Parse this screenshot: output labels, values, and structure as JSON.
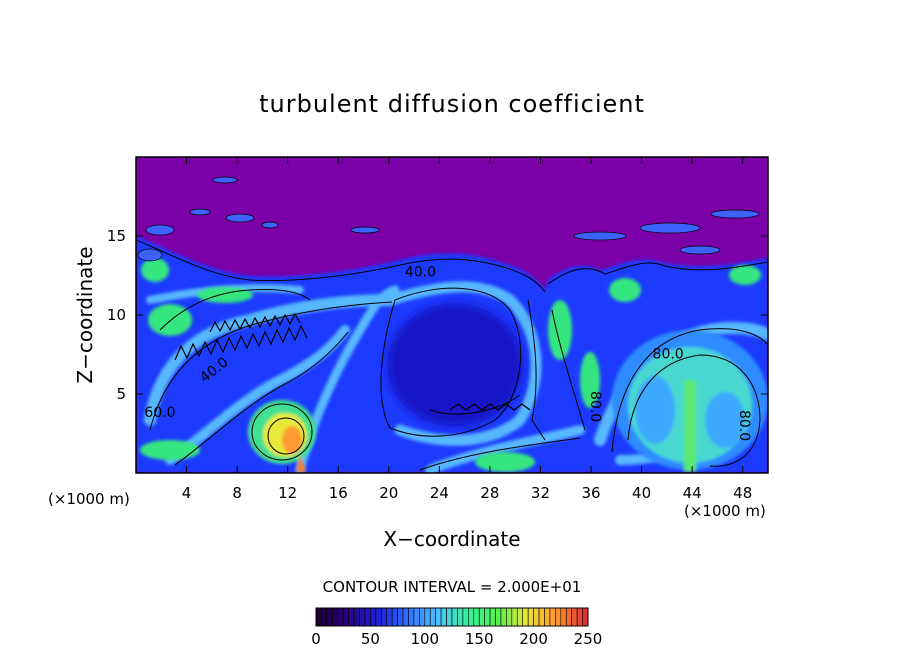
{
  "chart_data": {
    "type": "heatmap",
    "title": "turbulent diffusion coefficient",
    "xlabel": "X−coordinate",
    "ylabel": "Z−coordinate",
    "x_unit_left": "(×1000 m)",
    "x_unit_right": "(×1000 m)",
    "xlim": [
      0,
      50
    ],
    "ylim": [
      0,
      20
    ],
    "x_ticks": [
      4,
      8,
      12,
      16,
      20,
      24,
      28,
      32,
      36,
      40,
      44,
      48
    ],
    "y_ticks": [
      5,
      10,
      15
    ],
    "contour_interval_label": "CONTOUR INTERVAL = 2.000E+01",
    "contour_labels": [
      {
        "text": "40.0",
        "x": 22.5,
        "y": 12.7,
        "rotate": 0
      },
      {
        "text": "40.0",
        "x": 6.2,
        "y": 6.5,
        "rotate": -38
      },
      {
        "text": "60.0",
        "x": 1.9,
        "y": 3.8,
        "rotate": 0
      },
      {
        "text": "80.0",
        "x": 42.1,
        "y": 7.5,
        "rotate": 0
      },
      {
        "text": "80.0",
        "x": 48.1,
        "y": 3.0,
        "rotate": 90
      },
      {
        "text": "80.0",
        "x": 36.3,
        "y": 4.2,
        "rotate": 90
      }
    ],
    "colorbar": {
      "min": 0,
      "max": 250,
      "tick_values": [
        0,
        50,
        100,
        150,
        200,
        250
      ],
      "colors": [
        "#1a0033",
        "#2a0080",
        "#1f1fd9",
        "#2f6fff",
        "#4fc0ff",
        "#38f0a0",
        "#50f050",
        "#e8e83a",
        "#ff9a30",
        "#e63030"
      ]
    },
    "colors": {
      "background_low": "#7b00a8",
      "blue": "#1a3cff",
      "light_blue": "#55b5ff",
      "green": "#2fe070",
      "yellow": "#f0e040",
      "orange": "#ff8c2a"
    }
  }
}
